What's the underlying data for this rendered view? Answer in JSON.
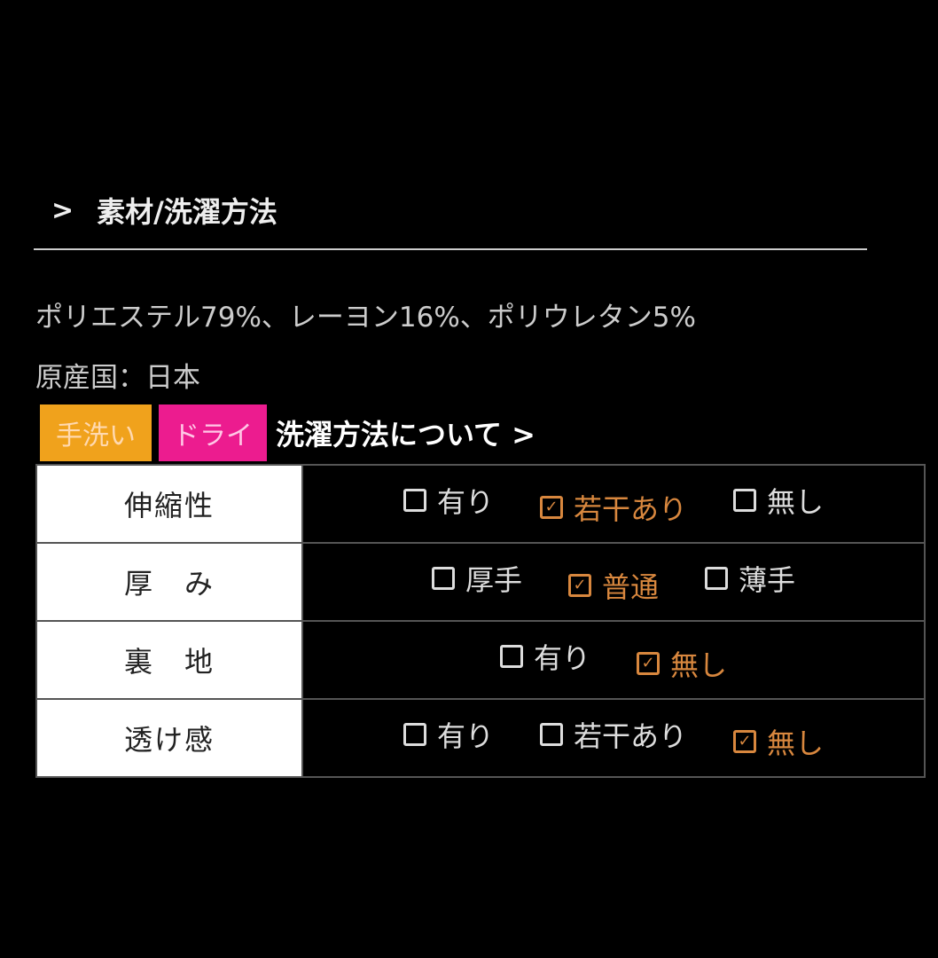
{
  "section": {
    "title": "素材/洗濯方法",
    "icon": "chevron-right-icon"
  },
  "material": "ポリエステル79%、レーヨン16%、ポリウレタン5%",
  "origin": "原産国：日本",
  "tags": {
    "hand_wash": "手洗い",
    "dry": "ドライ",
    "link": "洗濯方法について >",
    "colors": {
      "hand_wash": "#f0a21c",
      "dry": "#ec1c8f"
    }
  },
  "checked_color": "#d8873e",
  "rows": [
    {
      "label": "伸縮性",
      "options": [
        {
          "text": "有り",
          "checked": false
        },
        {
          "text": "若干あり",
          "checked": true
        },
        {
          "text": "無し",
          "checked": false
        }
      ]
    },
    {
      "label": "厚　み",
      "options": [
        {
          "text": "厚手",
          "checked": false
        },
        {
          "text": "普通",
          "checked": true
        },
        {
          "text": "薄手",
          "checked": false
        }
      ]
    },
    {
      "label": "裏　地",
      "options": [
        {
          "text": "有り",
          "checked": false
        },
        {
          "text": "無し",
          "checked": true
        }
      ]
    },
    {
      "label": "透け感",
      "options": [
        {
          "text": "有り",
          "checked": false
        },
        {
          "text": "若干あり",
          "checked": false
        },
        {
          "text": "無し",
          "checked": true
        }
      ]
    }
  ]
}
